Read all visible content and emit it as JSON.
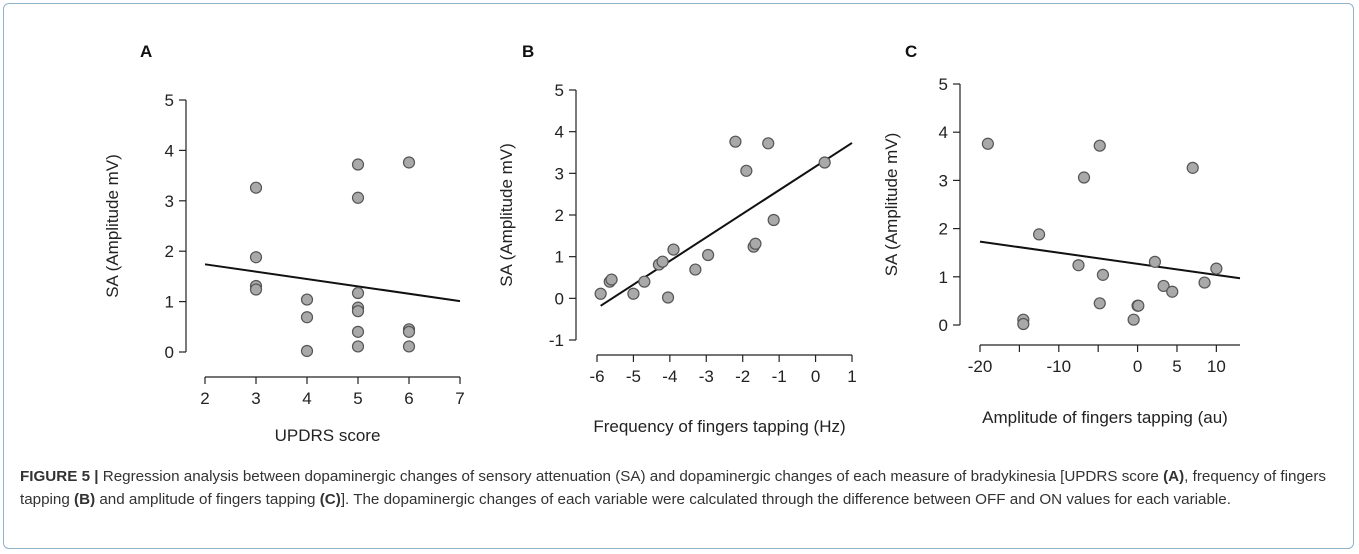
{
  "chart_data": [
    {
      "type": "scatter",
      "panel_label": "A",
      "xlabel": "UPDRS score",
      "ylabel": "SA (Amplitude mV)",
      "xlim": [
        2,
        7
      ],
      "ylim": [
        0,
        5
      ],
      "xticks": [
        "2",
        "3",
        "4",
        "5",
        "6",
        "7"
      ],
      "yticks": [
        "0",
        "1",
        "2",
        "3",
        "4",
        "5"
      ],
      "points": [
        {
          "x": 3,
          "y": 3.26
        },
        {
          "x": 3,
          "y": 1.88
        },
        {
          "x": 3,
          "y": 1.31
        },
        {
          "x": 3,
          "y": 1.24
        },
        {
          "x": 4,
          "y": 1.04
        },
        {
          "x": 4,
          "y": 0.69
        },
        {
          "x": 4,
          "y": 0.02
        },
        {
          "x": 5,
          "y": 3.72
        },
        {
          "x": 5,
          "y": 3.06
        },
        {
          "x": 5,
          "y": 1.17
        },
        {
          "x": 5,
          "y": 0.88
        },
        {
          "x": 5,
          "y": 0.81
        },
        {
          "x": 5,
          "y": 0.4
        },
        {
          "x": 5,
          "y": 0.11
        },
        {
          "x": 6,
          "y": 3.76
        },
        {
          "x": 6,
          "y": 0.45
        },
        {
          "x": 6,
          "y": 0.4
        },
        {
          "x": 6,
          "y": 0.11
        }
      ],
      "fit_line": {
        "x": [
          2,
          7
        ],
        "y": [
          1.74,
          1.01
        ]
      }
    },
    {
      "type": "scatter",
      "panel_label": "B",
      "xlabel": "Frequency of fingers tapping (Hz)",
      "ylabel": "SA (Amplitude mV)",
      "xlim": [
        -6,
        1
      ],
      "ylim": [
        -1,
        5
      ],
      "xticks": [
        "-6",
        "-5",
        "-4",
        "-3",
        "-2",
        "-1",
        "0",
        "1"
      ],
      "yticks": [
        "-1",
        "0",
        "1",
        "2",
        "3",
        "4",
        "5"
      ],
      "points": [
        {
          "x": -5.9,
          "y": 0.11
        },
        {
          "x": -5.65,
          "y": 0.4
        },
        {
          "x": -5.6,
          "y": 0.45
        },
        {
          "x": -5.0,
          "y": 0.11
        },
        {
          "x": -4.7,
          "y": 0.4
        },
        {
          "x": -4.3,
          "y": 0.81
        },
        {
          "x": -4.2,
          "y": 0.88
        },
        {
          "x": -4.05,
          "y": 0.02
        },
        {
          "x": -3.9,
          "y": 1.17
        },
        {
          "x": -3.3,
          "y": 0.69
        },
        {
          "x": -2.95,
          "y": 1.04
        },
        {
          "x": -2.2,
          "y": 3.76
        },
        {
          "x": -1.9,
          "y": 3.06
        },
        {
          "x": -1.7,
          "y": 1.24
        },
        {
          "x": -1.65,
          "y": 1.31
        },
        {
          "x": -1.3,
          "y": 3.72
        },
        {
          "x": -1.15,
          "y": 1.88
        },
        {
          "x": 0.25,
          "y": 3.26
        }
      ],
      "fit_line": {
        "x": [
          -5.9,
          1
        ],
        "y": [
          -0.18,
          3.73
        ]
      }
    },
    {
      "type": "scatter",
      "panel_label": "C",
      "xlabel": "Amplitude of fingers tapping (au)",
      "ylabel": "SA (Amplitude mV)",
      "xlim": [
        -20,
        13
      ],
      "ylim": [
        0,
        5
      ],
      "xticks": [
        "-20",
        "-10",
        "0",
        "5",
        "10"
      ],
      "xtick_values": [
        -20,
        -10,
        0,
        5,
        10
      ],
      "yticks": [
        "0",
        "1",
        "2",
        "3",
        "4",
        "5"
      ],
      "points": [
        {
          "x": -19,
          "y": 3.76
        },
        {
          "x": -14.5,
          "y": 0.11
        },
        {
          "x": -14.5,
          "y": 0.02
        },
        {
          "x": -12.5,
          "y": 1.88
        },
        {
          "x": -7.5,
          "y": 1.24
        },
        {
          "x": -6.8,
          "y": 3.06
        },
        {
          "x": -4.8,
          "y": 3.72
        },
        {
          "x": -4.8,
          "y": 0.45
        },
        {
          "x": -4.4,
          "y": 1.04
        },
        {
          "x": -0.5,
          "y": 0.11
        },
        {
          "x": 0,
          "y": 0.4
        },
        {
          "x": 0.1,
          "y": 0.4
        },
        {
          "x": 2.2,
          "y": 1.31
        },
        {
          "x": 3.3,
          "y": 0.81
        },
        {
          "x": 4.4,
          "y": 0.69
        },
        {
          "x": 7.0,
          "y": 3.26
        },
        {
          "x": 8.5,
          "y": 0.88
        },
        {
          "x": 10.0,
          "y": 1.17
        }
      ],
      "fit_line": {
        "x": [
          -20,
          13
        ],
        "y": [
          1.73,
          0.97
        ]
      }
    }
  ],
  "caption": {
    "lead": "FIGURE 5 |",
    "text_1": " Regression analysis between dopaminergic changes of sensory attenuation (SA) and dopaminergic changes of each measure of bradykinesia [UPDRS score ",
    "ref_a": "(A)",
    "text_2": ", frequency of fingers tapping ",
    "ref_b": "(B)",
    "text_3": " and amplitude of fingers tapping ",
    "ref_c": "(C)",
    "text_4": "]. The dopaminergic changes of each variable were calculated through the difference between OFF and ON values for each variable."
  },
  "colors": {
    "marker_fill": "#a9a9a9",
    "marker_stroke": "#555555",
    "line": "#111111",
    "frame_border": "#8fb3c9"
  }
}
